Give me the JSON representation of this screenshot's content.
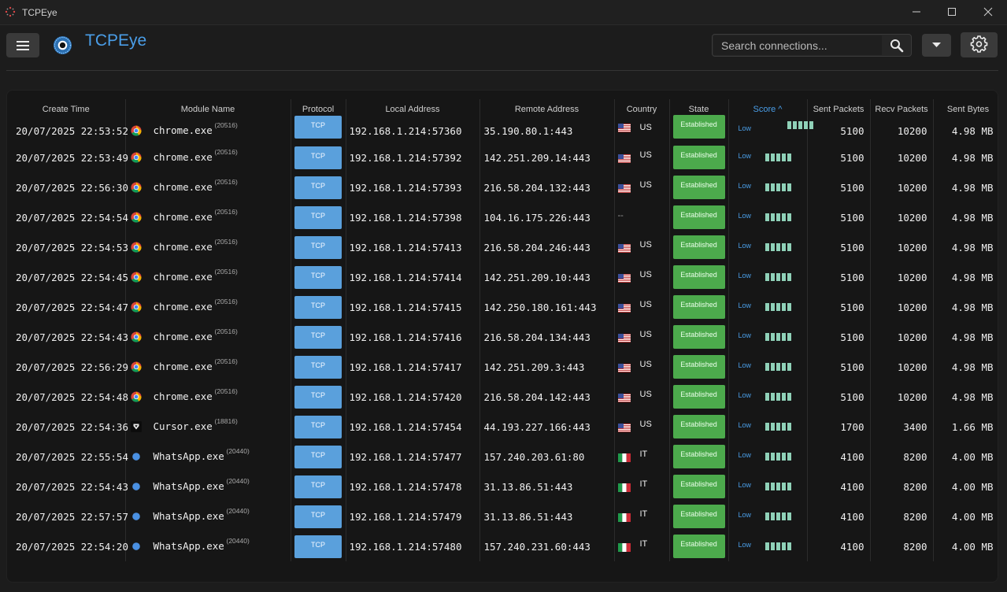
{
  "window": {
    "title": "TCPEye",
    "controls": [
      "minimize-icon",
      "maximize-icon",
      "close-icon"
    ]
  },
  "toolbar": {
    "brand": "TCPEye",
    "search_placeholder": "Search connections...",
    "icons": [
      "menu-icon",
      "eye-logo-icon",
      "search-icon",
      "chevron-down-icon",
      "gear-icon"
    ]
  },
  "colors": {
    "accent": "#4a9ee8",
    "protocol_badge": "#5aa0dc",
    "established": "#4caa4c",
    "score_bar": "#8fd1b8",
    "background": "#1c1c1c"
  },
  "table": {
    "columns": [
      "Create Time",
      "Module Name",
      "Protocol",
      "Local Address",
      "Remote Address",
      "Country",
      "State",
      "Score ^",
      "Sent Packets",
      "Recv Packets",
      "Sent Bytes"
    ],
    "sorted_column": "Score ^",
    "rows": [
      {
        "time": "20/07/2025 22:53:52",
        "icon": "chrome",
        "module": "chrome.exe",
        "pid": "(20516)",
        "protocol": "TCP",
        "local": "192.168.1.214:57360",
        "remote": "35.190.80.1:443",
        "flag": "us",
        "country": "US",
        "state": "Established",
        "score": "Low",
        "score_level": 5,
        "sent_packets": "5100",
        "recv_packets": "10200",
        "sent_bytes": "4.98 MB"
      },
      {
        "time": "20/07/2025 22:53:49",
        "icon": "chrome",
        "module": "chrome.exe",
        "pid": "(20516)",
        "protocol": "TCP",
        "local": "192.168.1.214:57392",
        "remote": "142.251.209.14:443",
        "flag": "us",
        "country": "US",
        "state": "Established",
        "score": "Low",
        "score_level": 5,
        "sent_packets": "5100",
        "recv_packets": "10200",
        "sent_bytes": "4.98 MB"
      },
      {
        "time": "20/07/2025 22:56:30",
        "icon": "chrome",
        "module": "chrome.exe",
        "pid": "(20516)",
        "protocol": "TCP",
        "local": "192.168.1.214:57393",
        "remote": "216.58.204.132:443",
        "flag": "us",
        "country": "US",
        "state": "Established",
        "score": "Low",
        "score_level": 5,
        "sent_packets": "5100",
        "recv_packets": "10200",
        "sent_bytes": "4.98 MB"
      },
      {
        "time": "20/07/2025 22:54:54",
        "icon": "chrome",
        "module": "chrome.exe",
        "pid": "(20516)",
        "protocol": "TCP",
        "local": "192.168.1.214:57398",
        "remote": "104.16.175.226:443",
        "flag": "",
        "country": "--",
        "state": "Established",
        "score": "Low",
        "score_level": 5,
        "sent_packets": "5100",
        "recv_packets": "10200",
        "sent_bytes": "4.98 MB"
      },
      {
        "time": "20/07/2025 22:54:53",
        "icon": "chrome",
        "module": "chrome.exe",
        "pid": "(20516)",
        "protocol": "TCP",
        "local": "192.168.1.214:57413",
        "remote": "216.58.204.246:443",
        "flag": "us",
        "country": "US",
        "state": "Established",
        "score": "Low",
        "score_level": 5,
        "sent_packets": "5100",
        "recv_packets": "10200",
        "sent_bytes": "4.98 MB"
      },
      {
        "time": "20/07/2025 22:54:45",
        "icon": "chrome",
        "module": "chrome.exe",
        "pid": "(20516)",
        "protocol": "TCP",
        "local": "192.168.1.214:57414",
        "remote": "142.251.209.10:443",
        "flag": "us",
        "country": "US",
        "state": "Established",
        "score": "Low",
        "score_level": 5,
        "sent_packets": "5100",
        "recv_packets": "10200",
        "sent_bytes": "4.98 MB"
      },
      {
        "time": "20/07/2025 22:54:47",
        "icon": "chrome",
        "module": "chrome.exe",
        "pid": "(20516)",
        "protocol": "TCP",
        "local": "192.168.1.214:57415",
        "remote": "142.250.180.161:443",
        "flag": "us",
        "country": "US",
        "state": "Established",
        "score": "Low",
        "score_level": 5,
        "sent_packets": "5100",
        "recv_packets": "10200",
        "sent_bytes": "4.98 MB"
      },
      {
        "time": "20/07/2025 22:54:43",
        "icon": "chrome",
        "module": "chrome.exe",
        "pid": "(20516)",
        "protocol": "TCP",
        "local": "192.168.1.214:57416",
        "remote": "216.58.204.134:443",
        "flag": "us",
        "country": "US",
        "state": "Established",
        "score": "Low",
        "score_level": 5,
        "sent_packets": "5100",
        "recv_packets": "10200",
        "sent_bytes": "4.98 MB"
      },
      {
        "time": "20/07/2025 22:56:29",
        "icon": "chrome",
        "module": "chrome.exe",
        "pid": "(20516)",
        "protocol": "TCP",
        "local": "192.168.1.214:57417",
        "remote": "142.251.209.3:443",
        "flag": "us",
        "country": "US",
        "state": "Established",
        "score": "Low",
        "score_level": 5,
        "sent_packets": "5100",
        "recv_packets": "10200",
        "sent_bytes": "4.98 MB"
      },
      {
        "time": "20/07/2025 22:54:48",
        "icon": "chrome",
        "module": "chrome.exe",
        "pid": "(20516)",
        "protocol": "TCP",
        "local": "192.168.1.214:57420",
        "remote": "216.58.204.142:443",
        "flag": "us",
        "country": "US",
        "state": "Established",
        "score": "Low",
        "score_level": 5,
        "sent_packets": "5100",
        "recv_packets": "10200",
        "sent_bytes": "4.98 MB"
      },
      {
        "time": "20/07/2025 22:54:36",
        "icon": "cursor",
        "module": "Cursor.exe",
        "pid": "(18816)",
        "protocol": "TCP",
        "local": "192.168.1.214:57454",
        "remote": "44.193.227.166:443",
        "flag": "us",
        "country": "US",
        "state": "Established",
        "score": "Low",
        "score_level": 5,
        "sent_packets": "1700",
        "recv_packets": "3400",
        "sent_bytes": "1.66 MB"
      },
      {
        "time": "20/07/2025 22:55:54",
        "icon": "whatsapp",
        "module": "WhatsApp.exe",
        "pid": "(20440)",
        "protocol": "TCP",
        "local": "192.168.1.214:57477",
        "remote": "157.240.203.61:80",
        "flag": "it",
        "country": "IT",
        "state": "Established",
        "score": "Low",
        "score_level": 5,
        "sent_packets": "4100",
        "recv_packets": "8200",
        "sent_bytes": "4.00 MB"
      },
      {
        "time": "20/07/2025 22:54:43",
        "icon": "whatsapp",
        "module": "WhatsApp.exe",
        "pid": "(20440)",
        "protocol": "TCP",
        "local": "192.168.1.214:57478",
        "remote": "31.13.86.51:443",
        "flag": "it",
        "country": "IT",
        "state": "Established",
        "score": "Low",
        "score_level": 5,
        "sent_packets": "4100",
        "recv_packets": "8200",
        "sent_bytes": "4.00 MB"
      },
      {
        "time": "20/07/2025 22:57:57",
        "icon": "whatsapp",
        "module": "WhatsApp.exe",
        "pid": "(20440)",
        "protocol": "TCP",
        "local": "192.168.1.214:57479",
        "remote": "31.13.86.51:443",
        "flag": "it",
        "country": "IT",
        "state": "Established",
        "score": "Low",
        "score_level": 5,
        "sent_packets": "4100",
        "recv_packets": "8200",
        "sent_bytes": "4.00 MB"
      },
      {
        "time": "20/07/2025 22:54:20",
        "icon": "whatsapp",
        "module": "WhatsApp.exe",
        "pid": "(20440)",
        "protocol": "TCP",
        "local": "192.168.1.214:57480",
        "remote": "157.240.231.60:443",
        "flag": "it",
        "country": "IT",
        "state": "Established",
        "score": "Low",
        "score_level": 5,
        "sent_packets": "4100",
        "recv_packets": "8200",
        "sent_bytes": "4.00 MB"
      }
    ]
  }
}
